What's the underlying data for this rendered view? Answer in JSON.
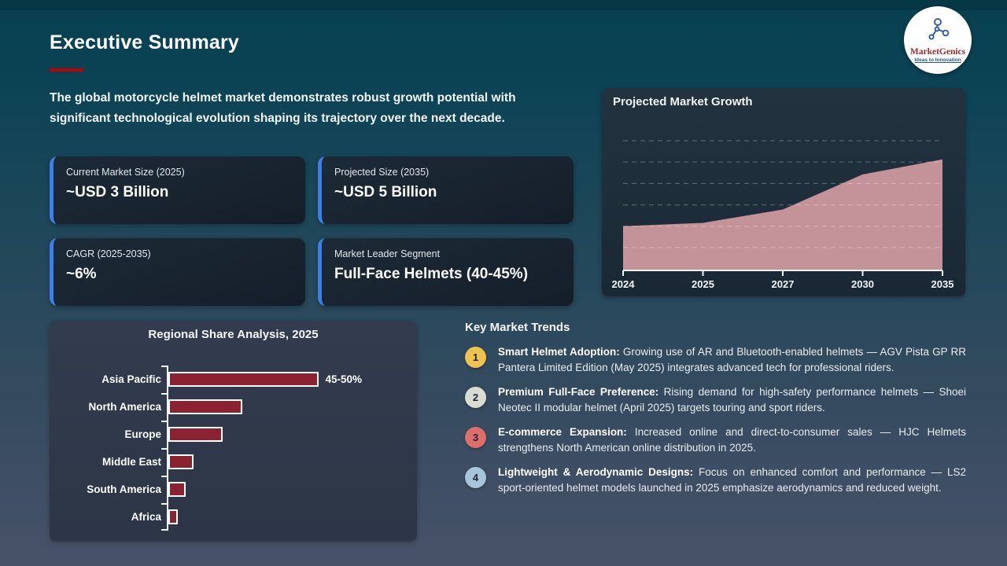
{
  "slide": {
    "title": "Executive Summary",
    "intro": "The global motorcycle helmet market demonstrates robust growth potential with significant technological evolution shaping its trajectory over the next decade."
  },
  "logo": {
    "name": "MarketGenics",
    "tagline": "Ideas to Innovation"
  },
  "stats": [
    {
      "label": "Current Market Size (2025)",
      "value": "~USD 3 Billion"
    },
    {
      "label": "Projected Size (2035)",
      "value": "~USD 5 Billion"
    },
    {
      "label": "CAGR (2025-2035)",
      "value": "~6%"
    },
    {
      "label": "Market Leader Segment",
      "value": "Full-Face Helmets (40-45%)"
    }
  ],
  "chart_data": [
    {
      "type": "area",
      "title": "Projected Market Growth",
      "x": [
        "2024",
        "2025",
        "2027",
        "2030",
        "2035"
      ],
      "values": [
        3.0,
        3.1,
        3.5,
        4.55,
        5.0
      ],
      "ylim": [
        1.7,
        6.3
      ],
      "xlabel": "",
      "ylabel": "",
      "grid": "horizontal-dashed",
      "legend": "none",
      "fill_color": "#c49399"
    },
    {
      "type": "bar",
      "orientation": "horizontal",
      "title": "Regional Share Analysis, 2025",
      "categories": [
        "Asia Pacific",
        "North America",
        "Europe",
        "Middle East",
        "South America",
        "Africa"
      ],
      "values": [
        47.5,
        19,
        14,
        6.5,
        4.5,
        2.5
      ],
      "xlim": [
        0,
        50
      ],
      "annotations": [
        "45-50%",
        "",
        "",
        "",
        "",
        ""
      ],
      "grid": "off",
      "legend": "none",
      "bar_color": "#8b2231"
    }
  ],
  "trends": {
    "title": "Key Market Trends",
    "items": [
      {
        "num": "1",
        "color": "#eec24f",
        "lead": "Smart Helmet Adoption:",
        "body": "Growing use of AR and Bluetooth-enabled helmets — AGV Pista GP RR Pantera Limited Edition (May 2025) integrates advanced tech for professional riders."
      },
      {
        "num": "2",
        "color": "#d8ddd2",
        "lead": "Premium Full-Face Preference:",
        "body": "Rising demand for high-safety performance helmets — Shoei Neotec II modular helmet (April 2025) targets touring and sport riders."
      },
      {
        "num": "3",
        "color": "#dd6e6a",
        "lead": "E-commerce Expansion:",
        "body": "Increased online and direct-to-consumer sales — HJC Helmets strengthens North American online distribution in 2025."
      },
      {
        "num": "4",
        "color": "#a6c5da",
        "lead": "Lightweight & Aerodynamic Designs:",
        "body": "Focus on enhanced comfort and performance — LS2 sport-oriented helmet models launched in 2025 emphasize aerodynamics and reduced weight."
      }
    ]
  },
  "colors": {
    "accent_blue": "#3e7ee6",
    "underline_red": "#c00000",
    "area_fill": "#c49399",
    "bar_fill": "#8b2231",
    "axis_white": "#f2f5f7"
  }
}
